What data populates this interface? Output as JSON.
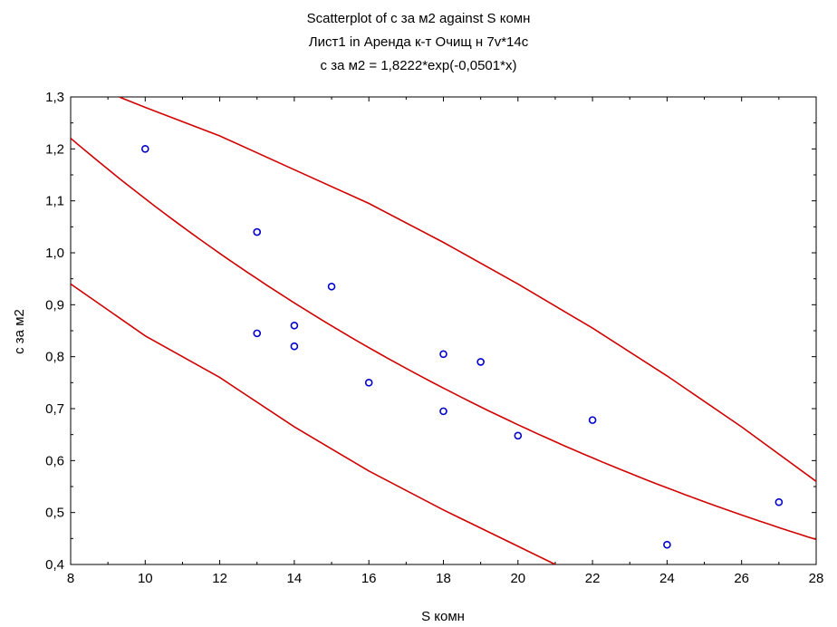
{
  "chart_data": {
    "type": "scatter",
    "title": "Scatterplot of с за м2 against S комн",
    "subtitle": "Лист1 in Аренда к-т Очищ н 7v*14c",
    "equation": "с за м2 = 1,8222*exp(-0,0501*x)",
    "xlabel": "S комн",
    "ylabel": "с за м2",
    "xlim": [
      8,
      28
    ],
    "ylim": [
      0.4,
      1.3
    ],
    "xticks": [
      "8",
      "10",
      "12",
      "14",
      "16",
      "18",
      "20",
      "22",
      "24",
      "26",
      "28"
    ],
    "yticks": [
      "0,4",
      "0,5",
      "0,6",
      "0,7",
      "0,8",
      "0,9",
      "1,0",
      "1,1",
      "1,2",
      "1,3"
    ],
    "grid": false,
    "legend": "none",
    "points": [
      {
        "x": 10,
        "y": 1.2
      },
      {
        "x": 13,
        "y": 1.04
      },
      {
        "x": 13,
        "y": 0.845
      },
      {
        "x": 14,
        "y": 0.86
      },
      {
        "x": 14,
        "y": 0.82
      },
      {
        "x": 15,
        "y": 0.935
      },
      {
        "x": 16,
        "y": 0.75
      },
      {
        "x": 18,
        "y": 0.805
      },
      {
        "x": 18,
        "y": 0.695
      },
      {
        "x": 19,
        "y": 0.79
      },
      {
        "x": 20,
        "y": 0.648
      },
      {
        "x": 22,
        "y": 0.678
      },
      {
        "x": 24,
        "y": 0.438
      },
      {
        "x": 27,
        "y": 0.52
      }
    ],
    "fit": {
      "a": 1.8222,
      "b": -0.0501
    },
    "upper_band": [
      {
        "x": 9.3,
        "y": 1.3
      },
      {
        "x": 10,
        "y": 1.28
      },
      {
        "x": 12,
        "y": 1.225
      },
      {
        "x": 14,
        "y": 1.16
      },
      {
        "x": 16,
        "y": 1.095
      },
      {
        "x": 18,
        "y": 1.02
      },
      {
        "x": 20,
        "y": 0.94
      },
      {
        "x": 22,
        "y": 0.855
      },
      {
        "x": 24,
        "y": 0.763
      },
      {
        "x": 26,
        "y": 0.665
      },
      {
        "x": 28,
        "y": 0.56
      }
    ],
    "lower_band": [
      {
        "x": 8,
        "y": 0.94
      },
      {
        "x": 10,
        "y": 0.84
      },
      {
        "x": 12,
        "y": 0.76
      },
      {
        "x": 14,
        "y": 0.665
      },
      {
        "x": 16,
        "y": 0.58
      },
      {
        "x": 18,
        "y": 0.505
      },
      {
        "x": 20,
        "y": 0.435
      },
      {
        "x": 21,
        "y": 0.4
      }
    ],
    "colors": {
      "points": "#0000cc",
      "lines": "#d10000",
      "axes": "#000000",
      "background": "#ffffff"
    }
  }
}
